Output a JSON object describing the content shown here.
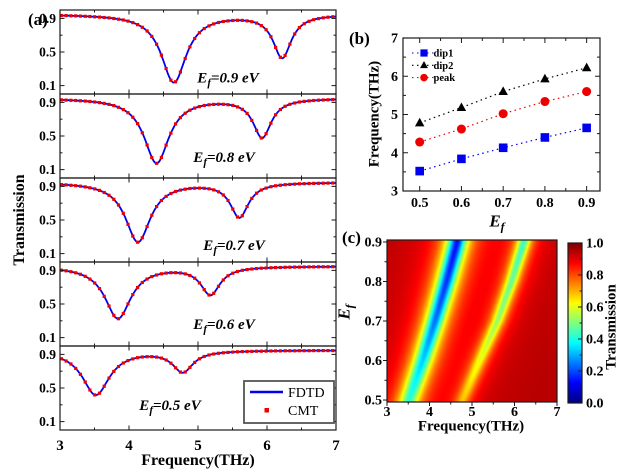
{
  "panel_labels": {
    "a": "(a)",
    "b": "(b)",
    "c": "(c)"
  },
  "axis_labels": {
    "panel_a_x": "Frequency(THz)",
    "panel_a_y": "Transmission",
    "panel_b_y": "Frequency(THz)",
    "panel_c_x": "Frequency(THz)",
    "colorbar": "Transmission",
    "ef_e": "E",
    "ef_sub": "f"
  },
  "colors": {
    "fdtd_blue": "#0000ee",
    "cmt_red": "#ee0000",
    "black": "#000000",
    "frame": "#1a1a1a",
    "legend_border": "#555555"
  },
  "chart_data": [
    {
      "id": "panel_a",
      "type": "line",
      "xlabel": "Frequency(THz)",
      "ylabel": "Transmission",
      "xlim": [
        3,
        7
      ],
      "x_ticks": [
        3,
        4,
        5,
        6,
        7
      ],
      "x_tick_labels": [
        "3",
        "4",
        "5",
        "6",
        "7"
      ],
      "x_minor_step": 0.5,
      "ylim": [
        0,
        1
      ],
      "y_ticks": [
        0.1,
        0.5,
        0.9
      ],
      "y_tick_labels": [
        "0.1",
        "0.5",
        "0.9"
      ],
      "y_minor_ticks": [
        0.3,
        0.7
      ],
      "baseline": 0.95,
      "legend": [
        {
          "label": "FDTD",
          "marker": "line",
          "color": "#0000ee"
        },
        {
          "label": "CMT",
          "marker": "square",
          "color": "#ee0000"
        }
      ],
      "subplots": [
        {
          "ef": "0.9",
          "label_rest": "=0.9 eV",
          "dips": [
            {
              "f0": 4.65,
              "min": 0.14,
              "w": 0.22
            },
            {
              "f0": 6.22,
              "min": 0.44,
              "w": 0.16
            }
          ]
        },
        {
          "ef": "0.8",
          "label_rest": "=0.8 eV",
          "dips": [
            {
              "f0": 4.4,
              "min": 0.18,
              "w": 0.22
            },
            {
              "f0": 5.93,
              "min": 0.49,
              "w": 0.16
            }
          ]
        },
        {
          "ef": "0.7",
          "label_rest": "=0.7 eV",
          "dips": [
            {
              "f0": 4.13,
              "min": 0.24,
              "w": 0.22
            },
            {
              "f0": 5.6,
              "min": 0.54,
              "w": 0.16
            }
          ]
        },
        {
          "ef": "0.6",
          "label_rest": "=0.6 eV",
          "dips": [
            {
              "f0": 3.84,
              "min": 0.33,
              "w": 0.23
            },
            {
              "f0": 5.18,
              "min": 0.62,
              "w": 0.17
            }
          ]
        },
        {
          "ef": "0.5",
          "label_rest": "=0.5 eV",
          "dips": [
            {
              "f0": 3.52,
              "min": 0.42,
              "w": 0.24
            },
            {
              "f0": 4.78,
              "min": 0.7,
              "w": 0.18
            }
          ]
        }
      ]
    },
    {
      "id": "panel_b",
      "type": "scatter",
      "ylabel": "Frequency(THz)",
      "xlabel_is_ef": true,
      "xlim": [
        0.46,
        0.932
      ],
      "ylim": [
        3,
        7
      ],
      "x_ticks": [
        0.5,
        0.6,
        0.7,
        0.8,
        0.9
      ],
      "x_tick_labels": [
        "0.5",
        "0.6",
        "0.7",
        "0.8",
        "0.9"
      ],
      "x_minor_step": 0.05,
      "y_ticks": [
        3,
        4,
        5,
        6,
        7
      ],
      "y_tick_labels": [
        "3",
        "4",
        "5",
        "6",
        "7"
      ],
      "y_minor_step": 0.5,
      "x": [
        0.5,
        0.6,
        0.7,
        0.8,
        0.9
      ],
      "series": [
        {
          "name": "dip1",
          "marker": "square",
          "color": "#0000ee",
          "values": [
            3.52,
            3.84,
            4.13,
            4.4,
            4.65
          ]
        },
        {
          "name": "dip2",
          "marker": "triangle",
          "color": "#000000",
          "values": [
            4.78,
            5.18,
            5.6,
            5.93,
            6.22
          ]
        },
        {
          "name": "peak",
          "marker": "circle",
          "color": "#ee0000",
          "values": [
            4.28,
            4.62,
            5.02,
            5.34,
            5.6
          ]
        }
      ],
      "legend_position": "top-left",
      "line_style": "dotted"
    },
    {
      "id": "panel_c",
      "type": "heatmap",
      "xlabel": "Frequency(THz)",
      "ylabel_is_ef": true,
      "xlim": [
        3,
        7
      ],
      "ylim": [
        0.495,
        0.905
      ],
      "x_ticks": [
        3,
        4,
        5,
        6,
        7
      ],
      "x_tick_labels": [
        "3",
        "4",
        "5",
        "6",
        "7"
      ],
      "x_minor_step": 0.5,
      "y_ticks": [
        0.5,
        0.6,
        0.7,
        0.8,
        0.9
      ],
      "y_tick_labels": [
        "0.5",
        "0.6",
        "0.7",
        "0.8",
        "0.9"
      ],
      "y_minor_step": 0.05,
      "colormap": "jet",
      "value_model": "transmission = baseline minus two Lorentzian dips; dip params linearly interpolated vs Ef from panel_a.subplots",
      "colorbar": {
        "label": "Transmission",
        "lim": [
          0.0,
          1.0
        ],
        "ticks": [
          0.0,
          0.2,
          0.4,
          0.6,
          0.8,
          1.0
        ],
        "tick_labels": [
          "0.0",
          "0.2",
          "0.4",
          "0.6",
          "0.8",
          "1.0"
        ],
        "minor_step": 0.1
      }
    }
  ]
}
